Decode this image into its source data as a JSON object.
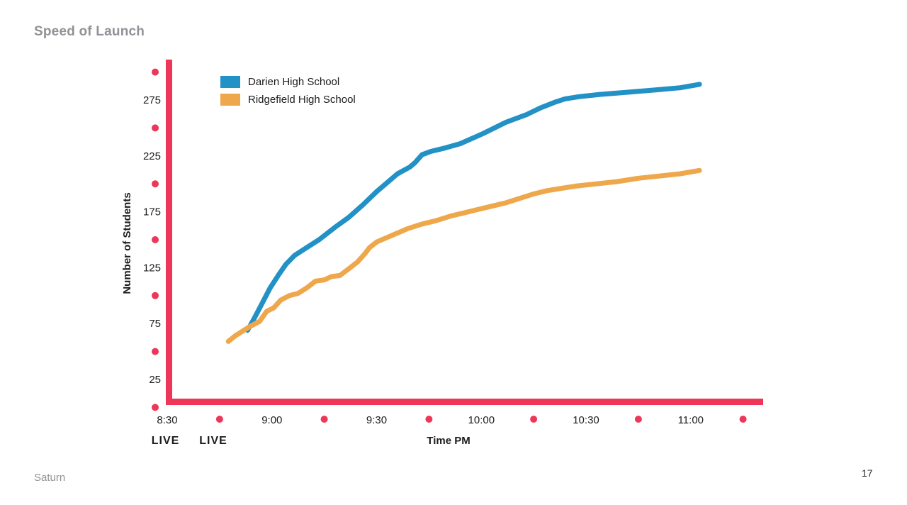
{
  "header": {
    "title": "Speed of Launch"
  },
  "footer": {
    "brand": "Saturn",
    "page_number": "17"
  },
  "colors": {
    "axis_red": "#EE3658",
    "darien_blue": "#2191C6",
    "ridgefield_orange": "#EFA74B",
    "muted_gray": "#8F9296",
    "text_black": "#1C1C1E"
  },
  "chart_data": {
    "type": "line",
    "title": "Speed of Launch",
    "xlabel": "Time PM",
    "ylabel": "Number of Students",
    "legend_position": "top-left-inside",
    "grid": "off",
    "axis_color": "#EE3658",
    "dot_color": "#EE3658",
    "ylim": [
      0,
      300
    ],
    "y_tick_values": [
      25,
      75,
      125,
      175,
      225,
      275
    ],
    "y_dot_values": [
      0,
      50,
      100,
      150,
      200,
      250,
      300
    ],
    "x_tick_labels": [
      "8:30",
      "9:00",
      "9:30",
      "10:00",
      "10:30",
      "11:00"
    ],
    "x_tick_minutes": [
      0,
      30,
      60,
      90,
      120,
      150
    ],
    "x_dot_minutes": [
      15,
      45,
      75,
      105,
      135,
      165
    ],
    "x_unit": "minutes after 8:30 PM",
    "series": [
      {
        "name": "Darien High School",
        "color": "#2191C6",
        "points": [
          [
            23,
            69
          ],
          [
            25,
            80
          ],
          [
            27,
            92
          ],
          [
            29.5,
            107
          ],
          [
            32,
            119
          ],
          [
            34,
            128
          ],
          [
            36.5,
            136
          ],
          [
            39.5,
            142
          ],
          [
            43.5,
            150
          ],
          [
            48,
            161
          ],
          [
            52,
            170
          ],
          [
            56,
            181
          ],
          [
            60,
            193
          ],
          [
            63,
            201
          ],
          [
            66,
            209
          ],
          [
            69.5,
            215
          ],
          [
            71,
            219
          ],
          [
            73,
            226
          ],
          [
            75.5,
            229
          ],
          [
            79.5,
            232
          ],
          [
            84,
            236
          ],
          [
            90.5,
            245
          ],
          [
            97,
            255
          ],
          [
            103,
            262
          ],
          [
            107,
            268
          ],
          [
            111,
            273
          ],
          [
            114,
            276
          ],
          [
            118,
            278
          ],
          [
            124,
            280
          ],
          [
            132,
            282
          ],
          [
            140,
            284
          ],
          [
            147,
            286
          ],
          [
            152.5,
            289
          ]
        ]
      },
      {
        "name": "Ridgefield High School",
        "color": "#EFA74B",
        "points": [
          [
            17.5,
            59
          ],
          [
            19.5,
            64
          ],
          [
            23.5,
            72
          ],
          [
            26.5,
            77
          ],
          [
            28.5,
            86
          ],
          [
            30.5,
            89
          ],
          [
            32.5,
            96
          ],
          [
            35,
            100
          ],
          [
            37.5,
            102
          ],
          [
            40,
            107
          ],
          [
            42.5,
            113
          ],
          [
            45,
            114
          ],
          [
            47,
            117
          ],
          [
            49.5,
            118
          ],
          [
            52,
            124
          ],
          [
            54.5,
            130
          ],
          [
            56.5,
            137
          ],
          [
            58,
            143
          ],
          [
            60,
            148
          ],
          [
            63,
            152
          ],
          [
            66,
            156
          ],
          [
            69,
            160
          ],
          [
            73,
            164
          ],
          [
            77,
            167
          ],
          [
            81,
            171
          ],
          [
            85,
            174
          ],
          [
            89,
            177
          ],
          [
            93,
            180
          ],
          [
            97,
            183
          ],
          [
            101,
            187
          ],
          [
            105,
            191
          ],
          [
            109,
            194
          ],
          [
            113,
            196
          ],
          [
            117,
            198
          ],
          [
            123,
            200
          ],
          [
            129,
            202
          ],
          [
            135,
            205
          ],
          [
            141,
            207
          ],
          [
            147,
            209
          ],
          [
            152.5,
            212
          ]
        ]
      }
    ],
    "annotations": [
      {
        "text": "LIVE",
        "color": "#EFA74B",
        "x_min": -0.5
      },
      {
        "text": "LIVE",
        "color": "#2191C6",
        "x_min": 13.2
      }
    ]
  }
}
